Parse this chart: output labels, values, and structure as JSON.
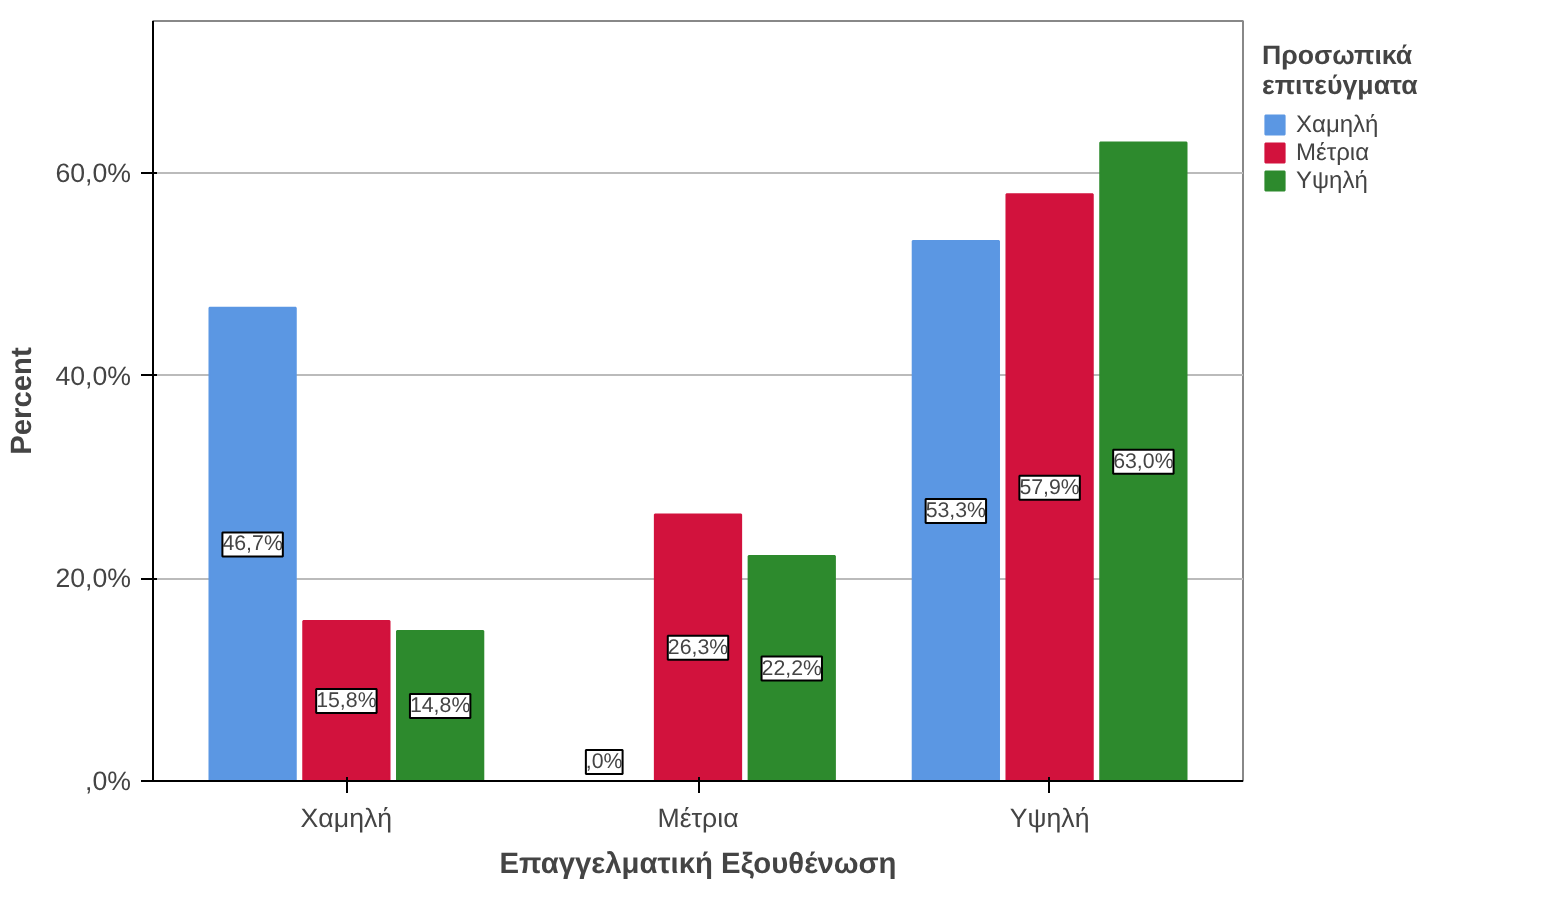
{
  "chart_data": {
    "type": "bar",
    "xlabel": "Επαγγελματική Εξουθένωση",
    "ylabel": "Percent",
    "legend_title": "Προσωπικά επιτεύγματα",
    "categories": [
      "Χαμηλή",
      "Μέτρια",
      "Υψηλή"
    ],
    "series": [
      {
        "name": "Χαμηλή",
        "color": "#5b97e3",
        "values": [
          46.7,
          0.0,
          53.3
        ],
        "value_labels": [
          "46,7%",
          ",0%",
          "53,3%"
        ]
      },
      {
        "name": "Μέτρια",
        "color": "#d2123d",
        "values": [
          15.8,
          26.3,
          57.9
        ],
        "value_labels": [
          "15,8%",
          "26,3%",
          "57,9%"
        ]
      },
      {
        "name": "Υψηλή",
        "color": "#2d8a2d",
        "values": [
          14.8,
          22.2,
          63.0
        ],
        "value_labels": [
          "14,8%",
          "22,2%",
          "63,0%"
        ]
      }
    ],
    "ylim": [
      0,
      75
    ],
    "yticks": [
      {
        "value": 0,
        "label": ",0%"
      },
      {
        "value": 20,
        "label": "20,0%"
      },
      {
        "value": 40,
        "label": "40,0%"
      },
      {
        "value": 60,
        "label": "60,0%"
      }
    ],
    "grid": "y",
    "legend": "right"
  }
}
